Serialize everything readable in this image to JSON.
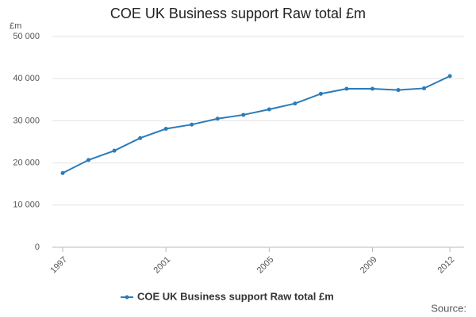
{
  "chart_data": {
    "type": "line",
    "title": "COE UK Business support Raw total £m",
    "y_axis_label": "£m",
    "source": "Source:",
    "x": [
      1997,
      1998,
      1999,
      2000,
      2001,
      2002,
      2003,
      2004,
      2005,
      2006,
      2007,
      2008,
      2009,
      2010,
      2011,
      2012
    ],
    "series": [
      {
        "name": "COE UK Business support Raw total £m",
        "color": "#2b7bb9",
        "values": [
          17600,
          20700,
          22900,
          25900,
          28100,
          29100,
          30500,
          31400,
          32700,
          34100,
          36400,
          37600,
          37600,
          37300,
          37700,
          40600
        ]
      }
    ],
    "xlim": [
      1996.6,
      2012.55
    ],
    "xticks": [
      1997,
      2001,
      2005,
      2009,
      2012
    ],
    "ylim": [
      0,
      50000
    ],
    "yticks": [
      0,
      {
        "value": 10000,
        "label": "10 000"
      },
      {
        "value": 20000,
        "label": "20 000"
      },
      {
        "value": 30000,
        "label": "30 000"
      },
      {
        "value": 40000,
        "label": "40 000"
      },
      {
        "value": 50000,
        "label": "50 000"
      }
    ],
    "grid": true,
    "legend": "bottom"
  }
}
